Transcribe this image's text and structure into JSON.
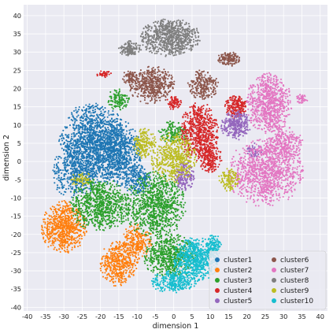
{
  "chart_data": {
    "type": "scatter",
    "title": "",
    "xlabel": "dimension 1",
    "ylabel": "dimension 2",
    "xlim": [
      -41,
      42
    ],
    "ylim": [
      -41,
      43
    ],
    "xticks": [
      -40,
      -35,
      -30,
      -25,
      -20,
      -15,
      -10,
      -5,
      0,
      5,
      10,
      15,
      20,
      25,
      30,
      35,
      40
    ],
    "yticks": [
      -40,
      -35,
      -30,
      -25,
      -20,
      -15,
      -10,
      -5,
      0,
      5,
      10,
      15,
      20,
      25,
      30,
      35,
      40
    ],
    "grid": true,
    "background": "#EAEAF2",
    "legend": {
      "placement": "lower-right",
      "columns": 2
    },
    "series": [
      {
        "name": "cluster1",
        "color": "#1f77b4",
        "regions": [
          {
            "cx": -22,
            "cy": 5,
            "rx": 9,
            "ry": 11,
            "n": 1400
          },
          {
            "cx": -15,
            "cy": 2,
            "rx": 6,
            "ry": 9,
            "n": 700
          },
          {
            "cx": -27,
            "cy": -3,
            "rx": 6,
            "ry": 7,
            "n": 400
          },
          {
            "cx": -10,
            "cy": -5,
            "rx": 4,
            "ry": 4,
            "n": 200
          }
        ]
      },
      {
        "name": "cluster2",
        "color": "#ff7f0e",
        "regions": [
          {
            "cx": -30,
            "cy": -18,
            "rx": 6,
            "ry": 7,
            "n": 700
          },
          {
            "cx": -15,
            "cy": -28,
            "rx": 5,
            "ry": 6,
            "n": 450
          },
          {
            "cx": -10,
            "cy": -22,
            "rx": 4,
            "ry": 5,
            "n": 250
          }
        ]
      },
      {
        "name": "cluster3",
        "color": "#2ca02c",
        "regions": [
          {
            "cx": -20,
            "cy": -12,
            "rx": 8,
            "ry": 7,
            "n": 800
          },
          {
            "cx": -5,
            "cy": -12,
            "rx": 8,
            "ry": 9,
            "n": 900
          },
          {
            "cx": -1,
            "cy": -26,
            "rx": 7,
            "ry": 6,
            "n": 600
          },
          {
            "cx": -15,
            "cy": 17,
            "rx": 3,
            "ry": 3,
            "n": 120
          },
          {
            "cx": 0,
            "cy": 8,
            "rx": 4,
            "ry": 3,
            "n": 150
          }
        ]
      },
      {
        "name": "cluster4",
        "color": "#d62728",
        "regions": [
          {
            "cx": 7,
            "cy": 8,
            "rx": 5,
            "ry": 8,
            "n": 650
          },
          {
            "cx": 17,
            "cy": 15,
            "rx": 3,
            "ry": 3,
            "n": 200
          },
          {
            "cx": 10,
            "cy": 1,
            "rx": 3,
            "ry": 4,
            "n": 200
          },
          {
            "cx": 0,
            "cy": 16,
            "rx": 2,
            "ry": 2,
            "n": 80
          },
          {
            "cx": -19,
            "cy": 24,
            "rx": 2,
            "ry": 1,
            "n": 40
          }
        ]
      },
      {
        "name": "cluster5",
        "color": "#9467bd",
        "regions": [
          {
            "cx": 17,
            "cy": 10,
            "rx": 4,
            "ry": 4,
            "n": 300
          },
          {
            "cx": 3,
            "cy": -4,
            "rx": 2.5,
            "ry": 4,
            "n": 180
          },
          {
            "cx": 22,
            "cy": 3,
            "rx": 2,
            "ry": 2,
            "n": 60
          }
        ]
      },
      {
        "name": "cluster6",
        "color": "#8c564b",
        "regions": [
          {
            "cx": -6,
            "cy": 21,
            "rx": 6,
            "ry": 5,
            "n": 500
          },
          {
            "cx": 8,
            "cy": 21,
            "rx": 4,
            "ry": 4,
            "n": 250
          },
          {
            "cx": 15,
            "cy": 28,
            "rx": 3,
            "ry": 2,
            "n": 150
          },
          {
            "cx": -12,
            "cy": 23,
            "rx": 2,
            "ry": 2,
            "n": 80
          }
        ]
      },
      {
        "name": "cluster7",
        "color": "#e377c2",
        "regions": [
          {
            "cx": 26,
            "cy": 16,
            "rx": 6,
            "ry": 8,
            "n": 800
          },
          {
            "cx": 25,
            "cy": -3,
            "rx": 10,
            "ry": 9,
            "n": 1100
          },
          {
            "cx": 30,
            "cy": 5,
            "rx": 5,
            "ry": 5,
            "n": 300
          },
          {
            "cx": 35,
            "cy": 17,
            "rx": 1.5,
            "ry": 1.5,
            "n": 40
          }
        ]
      },
      {
        "name": "cluster8",
        "color": "#7f7f7f",
        "regions": [
          {
            "cx": -1,
            "cy": 34,
            "rx": 8,
            "ry": 5,
            "n": 800
          },
          {
            "cx": -12,
            "cy": 31,
            "rx": 3,
            "ry": 2,
            "n": 150
          }
        ]
      },
      {
        "name": "cluster9",
        "color": "#bcbd22",
        "regions": [
          {
            "cx": 0,
            "cy": 1,
            "rx": 6,
            "ry": 7,
            "n": 500
          },
          {
            "cx": -8,
            "cy": 5,
            "rx": 3,
            "ry": 4,
            "n": 200
          },
          {
            "cx": -25,
            "cy": -5,
            "rx": 3,
            "ry": 2,
            "n": 60
          },
          {
            "cx": 15,
            "cy": -5,
            "rx": 3,
            "ry": 3,
            "n": 120
          }
        ]
      },
      {
        "name": "cluster10",
        "color": "#17becf",
        "regions": [
          {
            "cx": 6,
            "cy": -27,
            "rx": 6,
            "ry": 6,
            "n": 700
          },
          {
            "cx": 0,
            "cy": -33,
            "rx": 6,
            "ry": 3,
            "n": 300
          },
          {
            "cx": 11,
            "cy": -23,
            "rx": 2,
            "ry": 3,
            "n": 100
          }
        ]
      }
    ]
  }
}
